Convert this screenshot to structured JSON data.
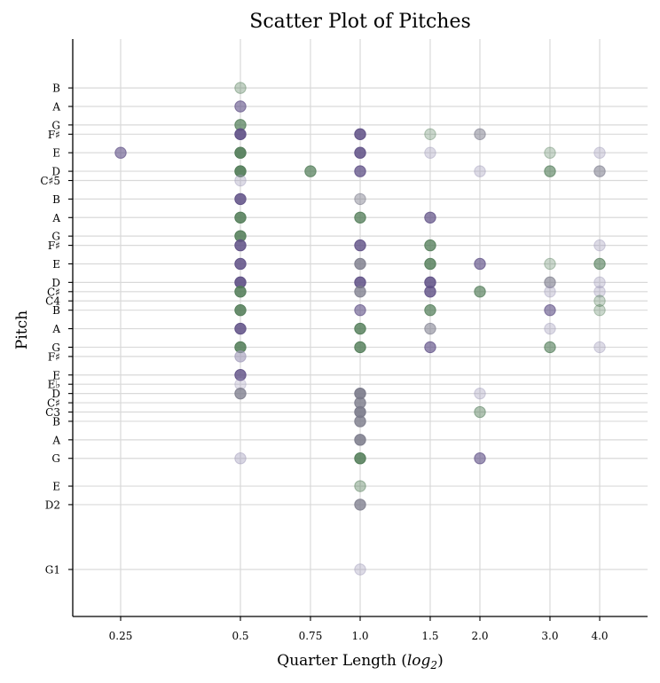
{
  "chart_data": {
    "type": "scatter",
    "title": "Scatter Plot of Pitches",
    "xlabel": "Quarter Length (log2)",
    "xlabel_main": "Quarter Length (",
    "xlabel_log": "log",
    "xlabel_sub": "2",
    "xlabel_end": ")",
    "ylabel": "Pitch",
    "x_scale": "log2",
    "grid": true,
    "x_ticks": [
      {
        "value": 0.25,
        "label": "0.25"
      },
      {
        "value": 0.5,
        "label": "0.5"
      },
      {
        "value": 0.75,
        "label": "0.75"
      },
      {
        "value": 1.0,
        "label": "1.0"
      },
      {
        "value": 1.5,
        "label": "1.5"
      },
      {
        "value": 2.0,
        "label": "2.0"
      },
      {
        "value": 3.0,
        "label": "3.0"
      },
      {
        "value": 4.0,
        "label": "4.0"
      }
    ],
    "y_ticks": [
      {
        "value": 31,
        "label": "G1"
      },
      {
        "value": 38,
        "label": "D2"
      },
      {
        "value": 40,
        "label": "E"
      },
      {
        "value": 43,
        "label": "G"
      },
      {
        "value": 45,
        "label": "A"
      },
      {
        "value": 47,
        "label": "B"
      },
      {
        "value": 48,
        "label": "C3"
      },
      {
        "value": 49,
        "label": "C♯"
      },
      {
        "value": 50,
        "label": "D"
      },
      {
        "value": 51,
        "label": "E♭"
      },
      {
        "value": 52,
        "label": "E"
      },
      {
        "value": 54,
        "label": "F♯"
      },
      {
        "value": 55,
        "label": "G"
      },
      {
        "value": 57,
        "label": "A"
      },
      {
        "value": 59,
        "label": "B"
      },
      {
        "value": 60,
        "label": "C4"
      },
      {
        "value": 61,
        "label": "C♯"
      },
      {
        "value": 62,
        "label": "D"
      },
      {
        "value": 64,
        "label": "E"
      },
      {
        "value": 66,
        "label": "F♯"
      },
      {
        "value": 67,
        "label": "G"
      },
      {
        "value": 69,
        "label": "A"
      },
      {
        "value": 71,
        "label": "B"
      },
      {
        "value": 73,
        "label": "C♯5"
      },
      {
        "value": 74,
        "label": "D"
      },
      {
        "value": 76,
        "label": "E"
      },
      {
        "value": 78,
        "label": "F♯"
      },
      {
        "value": 79,
        "label": "G"
      },
      {
        "value": 81,
        "label": "A"
      },
      {
        "value": 83,
        "label": "B"
      }
    ],
    "colors": {
      "purple": "#5e4f85",
      "green": "#4f7a55",
      "gray": "#7a7a8a",
      "lavender": "#9e98b8"
    },
    "points": [
      {
        "x": 0.25,
        "y": 76,
        "c": "purple",
        "a": 0.6
      },
      {
        "x": 0.5,
        "y": 83,
        "c": "green",
        "a": 0.35
      },
      {
        "x": 0.5,
        "y": 81,
        "c": "purple",
        "a": 0.6
      },
      {
        "x": 0.5,
        "y": 79,
        "c": "green",
        "a": 0.7
      },
      {
        "x": 0.5,
        "y": 78,
        "c": "purple",
        "a": 0.9
      },
      {
        "x": 0.5,
        "y": 76,
        "c": "green",
        "a": 0.9
      },
      {
        "x": 0.5,
        "y": 74,
        "c": "green",
        "a": 0.9
      },
      {
        "x": 0.5,
        "y": 73,
        "c": "lavender",
        "a": 0.35
      },
      {
        "x": 0.5,
        "y": 71,
        "c": "purple",
        "a": 0.85
      },
      {
        "x": 0.5,
        "y": 69,
        "c": "green",
        "a": 0.85
      },
      {
        "x": 0.5,
        "y": 67,
        "c": "green",
        "a": 0.85
      },
      {
        "x": 0.5,
        "y": 66,
        "c": "purple",
        "a": 0.85
      },
      {
        "x": 0.5,
        "y": 64,
        "c": "purple",
        "a": 0.85
      },
      {
        "x": 0.5,
        "y": 62,
        "c": "purple",
        "a": 0.9
      },
      {
        "x": 0.5,
        "y": 61,
        "c": "green",
        "a": 0.85
      },
      {
        "x": 0.5,
        "y": 59,
        "c": "green",
        "a": 0.85
      },
      {
        "x": 0.5,
        "y": 57,
        "c": "purple",
        "a": 0.85
      },
      {
        "x": 0.5,
        "y": 55,
        "c": "green",
        "a": 0.85
      },
      {
        "x": 0.5,
        "y": 54,
        "c": "lavender",
        "a": 0.6
      },
      {
        "x": 0.5,
        "y": 52,
        "c": "purple",
        "a": 0.8
      },
      {
        "x": 0.5,
        "y": 51,
        "c": "lavender",
        "a": 0.3
      },
      {
        "x": 0.5,
        "y": 50,
        "c": "gray",
        "a": 0.75
      },
      {
        "x": 0.5,
        "y": 43,
        "c": "lavender",
        "a": 0.4
      },
      {
        "x": 0.75,
        "y": 74,
        "c": "green",
        "a": 0.7
      },
      {
        "x": 1.0,
        "y": 78,
        "c": "purple",
        "a": 0.85
      },
      {
        "x": 1.0,
        "y": 76,
        "c": "purple",
        "a": 0.85
      },
      {
        "x": 1.0,
        "y": 74,
        "c": "purple",
        "a": 0.75
      },
      {
        "x": 1.0,
        "y": 71,
        "c": "gray",
        "a": 0.45
      },
      {
        "x": 1.0,
        "y": 69,
        "c": "green",
        "a": 0.75
      },
      {
        "x": 1.0,
        "y": 66,
        "c": "purple",
        "a": 0.8
      },
      {
        "x": 1.0,
        "y": 64,
        "c": "gray",
        "a": 0.8
      },
      {
        "x": 1.0,
        "y": 62,
        "c": "purple",
        "a": 0.85
      },
      {
        "x": 1.0,
        "y": 61,
        "c": "gray",
        "a": 0.75
      },
      {
        "x": 1.0,
        "y": 59,
        "c": "purple",
        "a": 0.6
      },
      {
        "x": 1.0,
        "y": 57,
        "c": "green",
        "a": 0.8
      },
      {
        "x": 1.0,
        "y": 55,
        "c": "green",
        "a": 0.8
      },
      {
        "x": 1.0,
        "y": 50,
        "c": "gray",
        "a": 0.9
      },
      {
        "x": 1.0,
        "y": 49,
        "c": "gray",
        "a": 0.8
      },
      {
        "x": 1.0,
        "y": 48,
        "c": "gray",
        "a": 0.9
      },
      {
        "x": 1.0,
        "y": 47,
        "c": "gray",
        "a": 0.8
      },
      {
        "x": 1.0,
        "y": 45,
        "c": "gray",
        "a": 0.85
      },
      {
        "x": 1.0,
        "y": 43,
        "c": "green",
        "a": 0.85
      },
      {
        "x": 1.0,
        "y": 40,
        "c": "green",
        "a": 0.4
      },
      {
        "x": 1.0,
        "y": 38,
        "c": "gray",
        "a": 0.75
      },
      {
        "x": 1.0,
        "y": 31,
        "c": "lavender",
        "a": 0.35
      },
      {
        "x": 1.5,
        "y": 78,
        "c": "green",
        "a": 0.3
      },
      {
        "x": 1.5,
        "y": 76,
        "c": "lavender",
        "a": 0.35
      },
      {
        "x": 1.5,
        "y": 69,
        "c": "purple",
        "a": 0.7
      },
      {
        "x": 1.5,
        "y": 66,
        "c": "green",
        "a": 0.75
      },
      {
        "x": 1.5,
        "y": 64,
        "c": "green",
        "a": 0.8
      },
      {
        "x": 1.5,
        "y": 62,
        "c": "purple",
        "a": 0.85
      },
      {
        "x": 1.5,
        "y": 61,
        "c": "purple",
        "a": 0.8
      },
      {
        "x": 1.5,
        "y": 59,
        "c": "green",
        "a": 0.7
      },
      {
        "x": 1.5,
        "y": 57,
        "c": "gray",
        "a": 0.55
      },
      {
        "x": 1.5,
        "y": 55,
        "c": "purple",
        "a": 0.65
      },
      {
        "x": 2.0,
        "y": 78,
        "c": "gray",
        "a": 0.5
      },
      {
        "x": 2.0,
        "y": 74,
        "c": "lavender",
        "a": 0.35
      },
      {
        "x": 2.0,
        "y": 64,
        "c": "purple",
        "a": 0.65
      },
      {
        "x": 2.0,
        "y": 61,
        "c": "green",
        "a": 0.65
      },
      {
        "x": 2.0,
        "y": 50,
        "c": "lavender",
        "a": 0.35
      },
      {
        "x": 2.0,
        "y": 48,
        "c": "green",
        "a": 0.45
      },
      {
        "x": 2.0,
        "y": 43,
        "c": "purple",
        "a": 0.6
      },
      {
        "x": 3.0,
        "y": 76,
        "c": "green",
        "a": 0.3
      },
      {
        "x": 3.0,
        "y": 74,
        "c": "green",
        "a": 0.6
      },
      {
        "x": 3.0,
        "y": 64,
        "c": "green",
        "a": 0.3
      },
      {
        "x": 3.0,
        "y": 62,
        "c": "gray",
        "a": 0.6
      },
      {
        "x": 3.0,
        "y": 61,
        "c": "lavender",
        "a": 0.35
      },
      {
        "x": 3.0,
        "y": 59,
        "c": "purple",
        "a": 0.6
      },
      {
        "x": 3.0,
        "y": 57,
        "c": "lavender",
        "a": 0.35
      },
      {
        "x": 3.0,
        "y": 55,
        "c": "green",
        "a": 0.6
      },
      {
        "x": 4.0,
        "y": 76,
        "c": "lavender",
        "a": 0.35
      },
      {
        "x": 4.0,
        "y": 74,
        "c": "gray",
        "a": 0.55
      },
      {
        "x": 4.0,
        "y": 66,
        "c": "lavender",
        "a": 0.35
      },
      {
        "x": 4.0,
        "y": 64,
        "c": "green",
        "a": 0.6
      },
      {
        "x": 4.0,
        "y": 62,
        "c": "lavender",
        "a": 0.35
      },
      {
        "x": 4.0,
        "y": 61,
        "c": "lavender",
        "a": 0.35
      },
      {
        "x": 4.0,
        "y": 60,
        "c": "green",
        "a": 0.3
      },
      {
        "x": 4.0,
        "y": 59,
        "c": "green",
        "a": 0.3
      },
      {
        "x": 4.0,
        "y": 55,
        "c": "lavender",
        "a": 0.35
      }
    ]
  }
}
